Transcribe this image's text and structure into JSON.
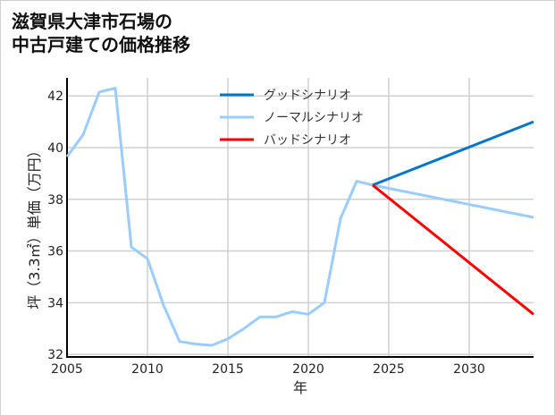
{
  "chart_data": {
    "type": "line",
    "title": [
      "滋賀県大津市石場の",
      "中古戸建ての価格推移"
    ],
    "xlabel": "年",
    "ylabel": "坪（3.3㎡）単価（万円）",
    "xlim": [
      2005,
      2034
    ],
    "ylim": [
      31.9,
      42.7
    ],
    "xticks": [
      2005,
      2010,
      2015,
      2020,
      2025,
      2030
    ],
    "yticks": [
      32,
      34,
      36,
      38,
      40,
      42
    ],
    "grid": true,
    "legend_position": "top-center",
    "series": [
      {
        "name": "グッドシナリオ",
        "color": "#0077cc",
        "x": [
          2024,
          2034
        ],
        "y": [
          38.55,
          41.0
        ]
      },
      {
        "name": "ノーマルシナリオ",
        "color": "#99ccff",
        "x": [
          2005,
          2006,
          2007,
          2008,
          2009,
          2010,
          2011,
          2012,
          2013,
          2014,
          2015,
          2016,
          2017,
          2018,
          2019,
          2020,
          2021,
          2022,
          2023,
          2024,
          2034
        ],
        "y": [
          39.65,
          40.5,
          42.15,
          42.3,
          36.15,
          35.7,
          33.9,
          32.5,
          32.4,
          32.35,
          32.6,
          33.0,
          33.45,
          33.45,
          33.65,
          33.55,
          34.0,
          37.25,
          38.7,
          38.55,
          37.3
        ]
      },
      {
        "name": "バッドシナリオ",
        "color": "#ff0000",
        "x": [
          2024,
          2034
        ],
        "y": [
          38.55,
          33.55
        ]
      }
    ]
  }
}
